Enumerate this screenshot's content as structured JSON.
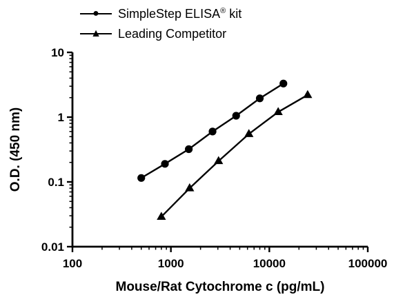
{
  "colors": {
    "axis": "#000000",
    "text": "#000000",
    "background": "#ffffff",
    "series": "#000000"
  },
  "chart_data": {
    "type": "line",
    "title": "",
    "xlabel": "Mouse/Rat Cytochrome c (pg/mL)",
    "ylabel": "O.D. (450 nm)",
    "x_scale": "log",
    "y_scale": "log",
    "xlim": [
      100,
      100000
    ],
    "ylim": [
      0.01,
      10
    ],
    "grid": false,
    "minor_ticks": true,
    "legend_position": "top-left",
    "x_ticks": {
      "values": [
        100,
        1000,
        10000,
        100000
      ],
      "labels": [
        "100",
        "1000",
        "10000",
        "100000"
      ]
    },
    "y_ticks": {
      "values": [
        0.01,
        0.1,
        1,
        10
      ],
      "labels": [
        "0.01",
        "0.1",
        "1",
        "10"
      ]
    },
    "series": [
      {
        "name": "SimpleStep ELISA® kit",
        "marker": "circle",
        "marker_icon": "filled-circle-marker-icon",
        "color": "#000000",
        "x": [
          500,
          870,
          1520,
          2650,
          4600,
          8000,
          13900
        ],
        "y": [
          0.115,
          0.19,
          0.32,
          0.6,
          1.05,
          1.95,
          3.3
        ]
      },
      {
        "name": "Leading Competitor",
        "marker": "triangle",
        "marker_icon": "filled-triangle-marker-icon",
        "color": "#000000",
        "x": [
          800,
          1550,
          3050,
          6200,
          12300,
          24500
        ],
        "y": [
          0.029,
          0.08,
          0.21,
          0.55,
          1.2,
          2.2
        ]
      }
    ]
  }
}
